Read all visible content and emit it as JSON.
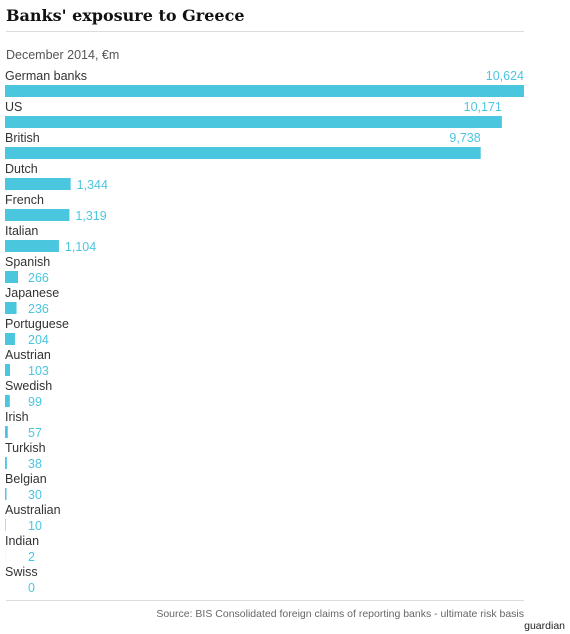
{
  "header": {
    "title": "Banks' exposure to Greece",
    "subtitle": "December 2014, €m"
  },
  "footer": {
    "source": "Source: BIS Consolidated foreign claims of reporting banks - ultimate risk basis",
    "logo_text": "guardian"
  },
  "colors": {
    "bar": "#4bc6df",
    "value_text": "#4bc6df",
    "label_text": "#333333"
  },
  "chart_data": {
    "type": "bar",
    "orientation": "horizontal",
    "title": "Banks' exposure to Greece",
    "subtitle": "December 2014, €m",
    "categories": [
      "German banks",
      "US",
      "British",
      "Dutch",
      "French",
      "Italian",
      "Spanish",
      "Japanese",
      "Portuguese",
      "Austrian",
      "Swedish",
      "Irish",
      "Turkish",
      "Belgian",
      "Australian",
      "Indian",
      "Swiss"
    ],
    "values": [
      10624,
      10171,
      9738,
      1344,
      1319,
      1104,
      266,
      236,
      204,
      103,
      99,
      57,
      38,
      30,
      10,
      2,
      0
    ],
    "value_labels": [
      "10,624",
      "10,171",
      "9,738",
      "1,344",
      "1,319",
      "1,104",
      "266",
      "236",
      "204",
      "103",
      "99",
      "57",
      "38",
      "30",
      "10",
      "2",
      "0"
    ],
    "xlim": [
      0,
      10624
    ],
    "grid": false,
    "legend": "none"
  }
}
